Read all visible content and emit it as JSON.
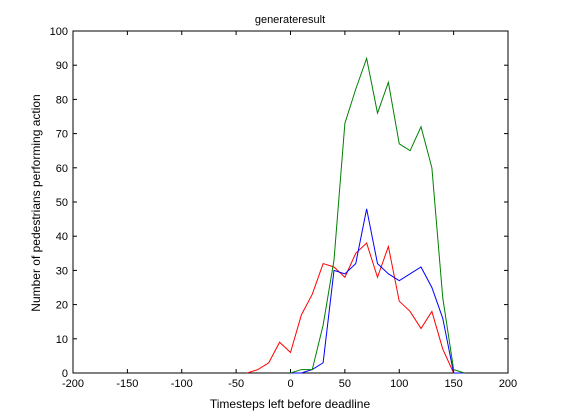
{
  "chart_data": {
    "type": "line",
    "title": "generateresult",
    "xlabel": "Timesteps left before deadline",
    "ylabel": "Number of pedestrians performing action",
    "xlim": [
      -200,
      200
    ],
    "ylim": [
      0,
      100
    ],
    "xticks": [
      -200,
      -150,
      -100,
      -50,
      0,
      50,
      100,
      150,
      200
    ],
    "yticks": [
      0,
      10,
      20,
      30,
      40,
      50,
      60,
      70,
      80,
      90,
      100
    ],
    "xtick_labels": [
      "-200",
      "-150",
      "-100",
      "-50",
      "0",
      "50",
      "100",
      "150",
      "200"
    ],
    "ytick_labels": [
      "0",
      "10",
      "20",
      "30",
      "40",
      "50",
      "60",
      "70",
      "80",
      "90",
      "100"
    ],
    "grid": false,
    "series": [
      {
        "color": "#ff0000",
        "x": [
          -40,
          -30,
          -20,
          -10,
          0,
          10,
          20,
          30,
          40,
          50,
          60,
          70,
          80,
          90,
          100,
          110,
          120,
          130,
          140,
          150,
          160
        ],
        "y": [
          0,
          1,
          3,
          9,
          6,
          17,
          23,
          32,
          31,
          28,
          35,
          38,
          28,
          37,
          21,
          18,
          13,
          18,
          7,
          0,
          0
        ]
      },
      {
        "color": "#0000ff",
        "x": [
          0,
          10,
          20,
          30,
          40,
          50,
          60,
          70,
          80,
          90,
          100,
          110,
          120,
          130,
          140,
          150,
          160
        ],
        "y": [
          0,
          0,
          1,
          3,
          30,
          29,
          32,
          48,
          32,
          29,
          27,
          29,
          31,
          25,
          16,
          0,
          0
        ]
      },
      {
        "color": "#008000",
        "x": [
          0,
          10,
          20,
          30,
          40,
          50,
          60,
          70,
          80,
          90,
          100,
          110,
          120,
          130,
          140,
          150,
          160
        ],
        "y": [
          0,
          1,
          1,
          14,
          33,
          73,
          83,
          92,
          76,
          85,
          67,
          65,
          72,
          60,
          22,
          1,
          0
        ]
      }
    ]
  }
}
